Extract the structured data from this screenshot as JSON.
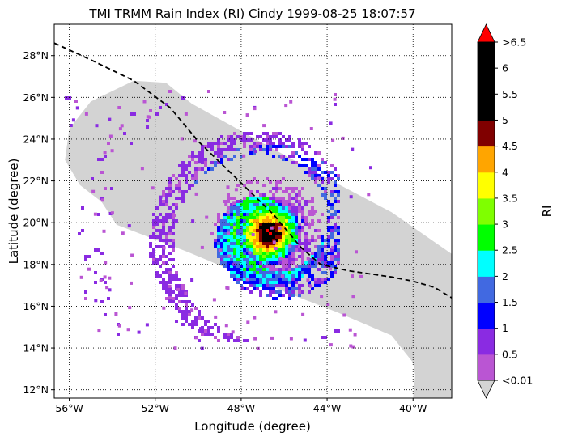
{
  "chart_data": {
    "type": "heatmap",
    "title": "TMI TRMM Rain Index (RI) Cindy 1999-08-25 18:07:57",
    "xlabel": "Longitude (degree)",
    "ylabel": "Latitude (degree)",
    "xlim": [
      -56.7,
      -38.2
    ],
    "ylim": [
      11.6,
      29.5
    ],
    "xticks": [
      -56,
      -52,
      -48,
      -44,
      -40
    ],
    "xtick_labels": [
      "56°W",
      "52°W",
      "48°W",
      "44°W",
      "40°W"
    ],
    "yticks": [
      12,
      14,
      16,
      18,
      20,
      22,
      24,
      26,
      28
    ],
    "ytick_labels": [
      "12°N",
      "14°N",
      "16°N",
      "18°N",
      "20°N",
      "22°N",
      "24°N",
      "26°N",
      "28°N"
    ],
    "grid": "dotted",
    "swath_color": "#d3d3d3",
    "track": {
      "style": "dashed",
      "color": "#000000",
      "lon": [
        -56.7,
        -55.0,
        -53.0,
        -51.3,
        -50.0,
        -48.3,
        -46.5,
        -45.2,
        -44.3,
        -43.0,
        -41.0,
        -40.0,
        -39.0,
        -38.2
      ],
      "lat": [
        28.6,
        27.8,
        26.8,
        25.5,
        23.9,
        22.2,
        20.4,
        18.8,
        18.0,
        17.7,
        17.4,
        17.2,
        16.9,
        16.4
      ]
    },
    "rain_field": {
      "center_lon": -46.8,
      "center_lat": 19.6,
      "description_levels": "RI values mapped to colorbar"
    },
    "colorbar": {
      "label": "RI",
      "boundaries": [
        0.01,
        0.5,
        1,
        1.5,
        2,
        2.5,
        3,
        3.5,
        4,
        4.5,
        5,
        5.5,
        6,
        6.5
      ],
      "tick_labels": [
        "<0.01",
        "0.5",
        "1",
        "1.5",
        "2",
        "2.5",
        "3",
        "3.5",
        "4",
        "4.5",
        "5",
        "5.5",
        "6",
        ">6.5"
      ],
      "colors": [
        "#ba55d3",
        "#8a2be2",
        "#0000ff",
        "#4169e1",
        "#00ffff",
        "#00ff00",
        "#7fff00",
        "#ffff00",
        "#ffa500",
        "#800000",
        "#000000",
        "#000000",
        "#000000"
      ],
      "under_color": "#d3d3d3",
      "over_color": "#ff0000"
    }
  }
}
